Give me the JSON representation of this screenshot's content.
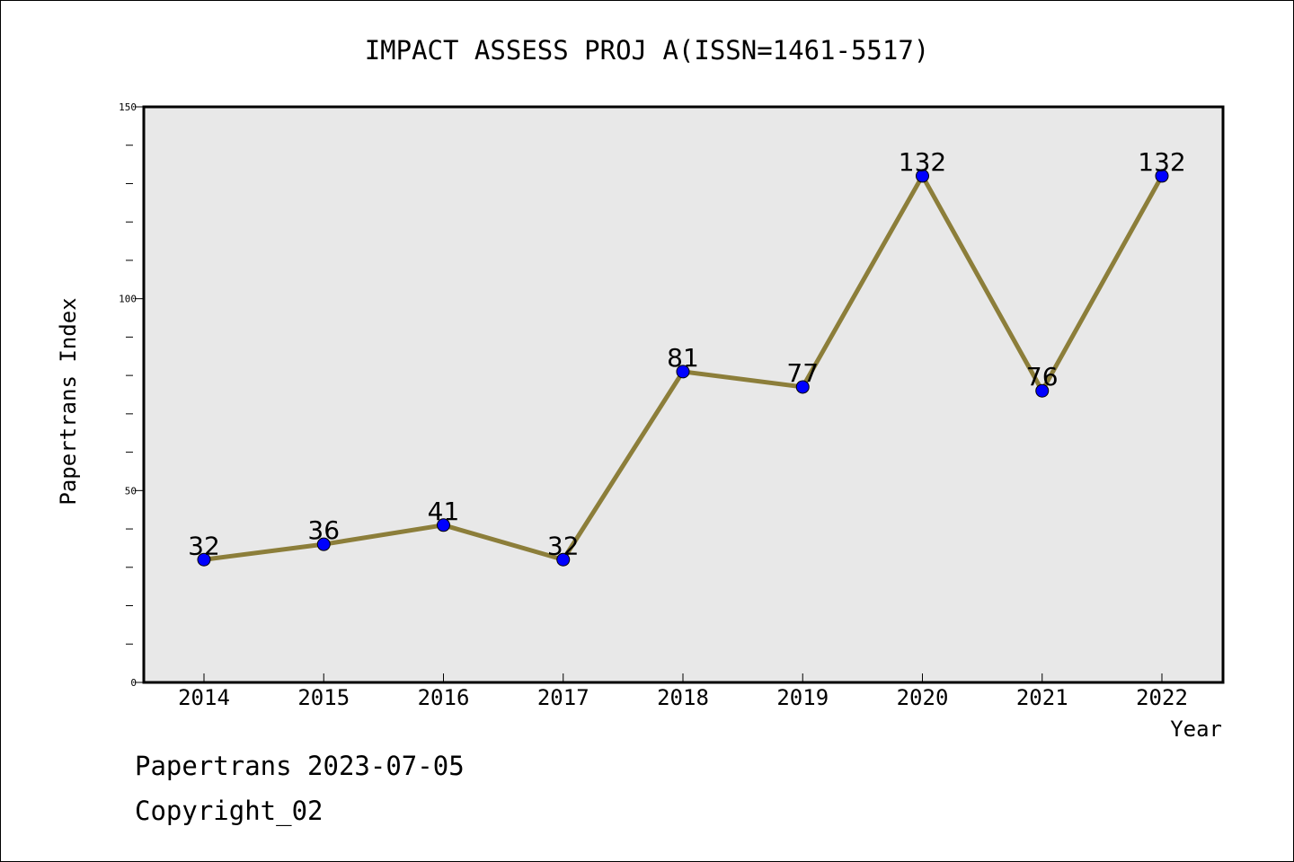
{
  "chart_data": {
    "type": "line",
    "title": "IMPACT ASSESS PROJ A(ISSN=1461-5517)",
    "xlabel": "Year",
    "ylabel": "Papertrans Index",
    "categories": [
      "2014",
      "2015",
      "2016",
      "2017",
      "2018",
      "2019",
      "2020",
      "2021",
      "2022"
    ],
    "values": [
      32,
      36,
      41,
      32,
      81,
      77,
      132,
      76,
      132
    ],
    "data_labels": [
      "32",
      "36",
      "41",
      "32",
      "81",
      "77",
      "132",
      "76",
      "132"
    ],
    "ylim": [
      0,
      150
    ],
    "y_ticks": [
      "0",
      "50",
      "100",
      "150"
    ],
    "grid": false,
    "legend": "none",
    "colors": {
      "line": "#8c7e3a",
      "marker": "#0000ff",
      "plot_background": "#e8e8e8"
    }
  },
  "footer": {
    "line1": "Papertrans 2023-07-05",
    "line2": "Copyright_02"
  }
}
